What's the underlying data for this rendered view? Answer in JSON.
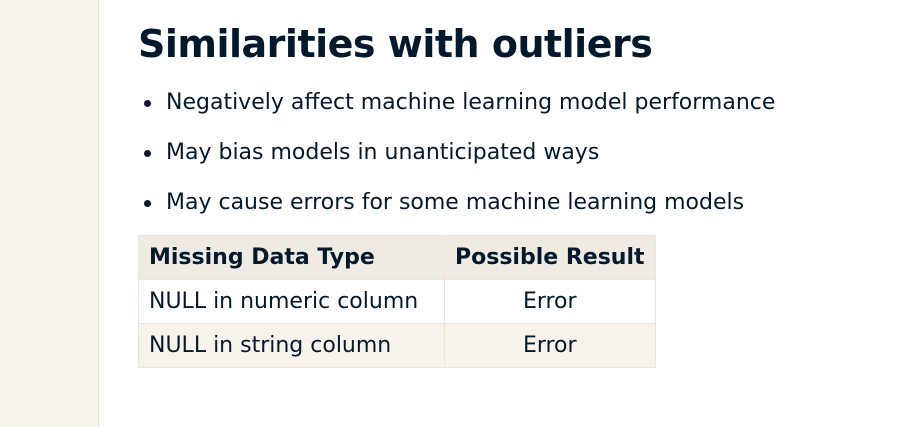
{
  "slide": {
    "title": "Similarities with outliers",
    "bullets": [
      "Negatively affect machine learning model performance",
      "May bias models in unanticipated ways",
      "May cause errors for some machine learning models"
    ],
    "table": {
      "headers": [
        "Missing Data Type",
        "Possible Result"
      ],
      "rows": [
        [
          "NULL in numeric column",
          "Error"
        ],
        [
          "NULL in string column",
          "Error"
        ]
      ]
    }
  },
  "colors": {
    "text": "#05192d",
    "panel": "#f7f3eb",
    "header_fill": "#efebe3",
    "border": "#ebe5da"
  }
}
